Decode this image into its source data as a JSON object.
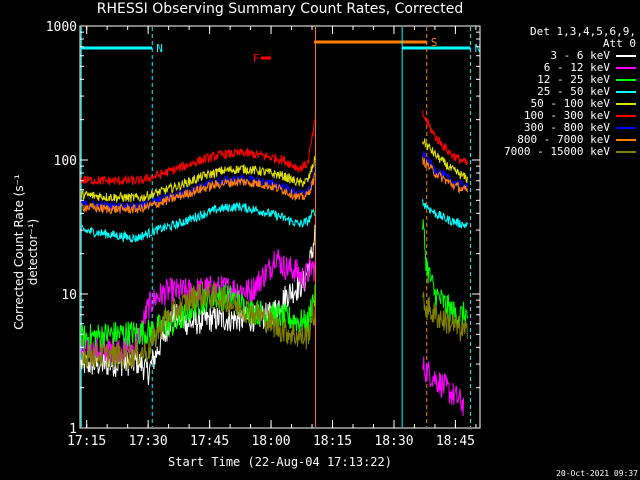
{
  "chart_data": {
    "type": "line",
    "title": "RHESSI Observing Summary Count Rates, Corrected",
    "xlabel": "Start Time (22-Aug-04 17:13:22)",
    "ylabel": "Corrected Count Rate (s⁻¹ detector⁻¹)",
    "x_ticks": [
      "17:15",
      "17:30",
      "17:45",
      "18:00",
      "18:15",
      "18:30",
      "18:45"
    ],
    "y_ticks": [
      "1",
      "10",
      "100",
      "1000"
    ],
    "ylim": [
      1,
      1000
    ],
    "y_scale": "log",
    "xlim": [
      "17:13:22",
      "18:51:00"
    ],
    "legend_header": [
      "Det 1,3,4,5,6,9,",
      "Att 0"
    ],
    "legend_position": "top-right",
    "flags": [
      {
        "label": "N",
        "color": "#00ffff",
        "start": "17:13:40",
        "end": "17:31:00"
      },
      {
        "label": "N",
        "color": "#00ffff",
        "start": "18:32:00",
        "end": "18:48:40"
      },
      {
        "label": "S",
        "color": "#ff8000",
        "start": "18:10:30",
        "end": "18:38:00"
      },
      {
        "label": "F",
        "color": "#ff0000",
        "start": "17:57:30",
        "end": "18:00:00"
      }
    ],
    "series": [
      {
        "name": "3 - 6 keV",
        "color": "#ffffff",
        "points": [
          [
            "17:13:40",
            3.0
          ],
          [
            "17:20",
            3.0
          ],
          [
            "17:28",
            3.1
          ],
          [
            "17:30",
            2.6
          ],
          [
            "17:32",
            3.6
          ],
          [
            "17:36",
            7.0
          ],
          [
            "17:40",
            6.0
          ],
          [
            "17:45",
            6.5
          ],
          [
            "17:50",
            6.5
          ],
          [
            "17:55",
            6.5
          ],
          [
            "18:00",
            7.0
          ],
          [
            "18:04",
            10.0
          ],
          [
            "18:08",
            12.0
          ],
          [
            "18:10",
            20.0
          ],
          [
            "18:10:50",
            30.0
          ]
        ]
      },
      {
        "name": "6 - 12 keV",
        "color": "#ff00ff",
        "points": [
          [
            "17:13:40",
            3.8
          ],
          [
            "17:20",
            3.8
          ],
          [
            "17:27",
            4.0
          ],
          [
            "17:30",
            8.0
          ],
          [
            "17:32",
            9.5
          ],
          [
            "17:35",
            10.5
          ],
          [
            "17:40",
            10.5
          ],
          [
            "17:45",
            11.0
          ],
          [
            "17:50",
            11.0
          ],
          [
            "17:55",
            10.5
          ],
          [
            "18:00",
            16.0
          ],
          [
            "18:01",
            20.0
          ],
          [
            "18:03",
            16.0
          ],
          [
            "18:06",
            15.0
          ],
          [
            "18:08",
            13.0
          ],
          [
            "18:10",
            16.0
          ],
          [
            "18:47",
            1.5
          ]
        ]
      },
      {
        "name": "12 - 25 keV",
        "color": "#00ff00",
        "points": [
          [
            "17:13:40",
            4.7
          ],
          [
            "17:20",
            5.0
          ],
          [
            "17:30",
            5.2
          ],
          [
            "17:33",
            5.7
          ],
          [
            "17:37",
            6.0
          ],
          [
            "17:41",
            8.0
          ],
          [
            "17:45",
            9.5
          ],
          [
            "17:50",
            9.5
          ],
          [
            "17:55",
            7.5
          ],
          [
            "18:00",
            7.0
          ],
          [
            "18:05",
            6.5
          ],
          [
            "18:09",
            6.0
          ],
          [
            "18:10",
            9.0
          ],
          [
            "18:37",
            35.0
          ],
          [
            "18:38",
            16.0
          ],
          [
            "18:40",
            10.0
          ],
          [
            "18:45",
            7.0
          ],
          [
            "18:48",
            7.0
          ]
        ]
      },
      {
        "name": "25 - 50 keV",
        "color": "#00ffff",
        "points": [
          [
            "17:13:40",
            30.0
          ],
          [
            "17:20",
            28.0
          ],
          [
            "17:27",
            26.0
          ],
          [
            "17:32",
            30.0
          ],
          [
            "17:37",
            33.0
          ],
          [
            "17:42",
            38.0
          ],
          [
            "17:47",
            43.0
          ],
          [
            "17:52",
            45.0
          ],
          [
            "17:57",
            42.0
          ],
          [
            "18:02",
            38.0
          ],
          [
            "18:07",
            33.0
          ],
          [
            "18:09",
            35.0
          ],
          [
            "18:10:40",
            42.0
          ],
          [
            "18:37",
            48.0
          ],
          [
            "18:40",
            40.0
          ],
          [
            "18:43",
            36.0
          ],
          [
            "18:47",
            33.0
          ],
          [
            "18:48",
            32.0
          ]
        ]
      },
      {
        "name": "50 - 100 keV",
        "color": "#e0e000",
        "points": [
          [
            "17:13:40",
            55.0
          ],
          [
            "17:20",
            53.0
          ],
          [
            "17:28",
            52.0
          ],
          [
            "17:33",
            58.0
          ],
          [
            "17:38",
            65.0
          ],
          [
            "17:43",
            75.0
          ],
          [
            "17:48",
            83.0
          ],
          [
            "17:53",
            86.0
          ],
          [
            "17:58",
            82.0
          ],
          [
            "18:03",
            76.0
          ],
          [
            "18:07",
            67.0
          ],
          [
            "18:09",
            70.0
          ],
          [
            "18:10:40",
            100.0
          ],
          [
            "18:37",
            140.0
          ],
          [
            "18:40",
            110.0
          ],
          [
            "18:44",
            85.0
          ],
          [
            "18:48",
            72.0
          ]
        ]
      },
      {
        "name": "100 - 300 keV",
        "color": "#ff0000",
        "points": [
          [
            "17:13:40",
            71.0
          ],
          [
            "17:20",
            70.0
          ],
          [
            "17:28",
            70.0
          ],
          [
            "17:33",
            78.0
          ],
          [
            "17:38",
            88.0
          ],
          [
            "17:43",
            100.0
          ],
          [
            "17:48",
            110.0
          ],
          [
            "17:53",
            113.0
          ],
          [
            "17:58",
            108.0
          ],
          [
            "18:03",
            100.0
          ],
          [
            "18:07",
            86.0
          ],
          [
            "18:09",
            95.0
          ],
          [
            "18:10:40",
            190.0
          ],
          [
            "18:37",
            220.0
          ],
          [
            "18:40",
            150.0
          ],
          [
            "18:44",
            110.0
          ],
          [
            "18:48",
            93.0
          ]
        ]
      },
      {
        "name": "300 - 800 keV",
        "color": "#0000ff",
        "points": [
          [
            "17:13:40",
            47.0
          ],
          [
            "17:20",
            45.0
          ],
          [
            "17:28",
            45.0
          ],
          [
            "17:33",
            50.0
          ],
          [
            "17:38",
            56.0
          ],
          [
            "17:43",
            64.0
          ],
          [
            "17:48",
            70.0
          ],
          [
            "17:53",
            72.0
          ],
          [
            "17:58",
            69.0
          ],
          [
            "18:03",
            63.0
          ],
          [
            "18:07",
            55.0
          ],
          [
            "18:09",
            58.0
          ],
          [
            "18:10:40",
            80.0
          ],
          [
            "18:37",
            110.0
          ],
          [
            "18:40",
            85.0
          ],
          [
            "18:44",
            70.0
          ],
          [
            "18:48",
            62.0
          ]
        ]
      },
      {
        "name": "800 - 7000 keV",
        "color": "#ff8000",
        "points": [
          [
            "17:13:40",
            45.0
          ],
          [
            "17:20",
            43.0
          ],
          [
            "17:28",
            43.0
          ],
          [
            "17:33",
            48.0
          ],
          [
            "17:38",
            54.0
          ],
          [
            "17:43",
            61.0
          ],
          [
            "17:48",
            67.0
          ],
          [
            "17:53",
            69.0
          ],
          [
            "17:58",
            66.0
          ],
          [
            "18:03",
            60.0
          ],
          [
            "18:07",
            52.0
          ],
          [
            "18:09",
            55.0
          ],
          [
            "18:10:40",
            75.0
          ],
          [
            "18:37",
            100.0
          ],
          [
            "18:40",
            80.0
          ],
          [
            "18:44",
            66.0
          ],
          [
            "18:48",
            58.0
          ]
        ]
      },
      {
        "name": "7000 - 15000 keV",
        "color": "#808000",
        "points": [
          [
            "17:13:40",
            3.5
          ],
          [
            "17:20",
            3.5
          ],
          [
            "17:25",
            3.4
          ],
          [
            "17:30",
            3.8
          ],
          [
            "17:34",
            6.5
          ],
          [
            "17:38",
            8.0
          ],
          [
            "17:42",
            10.0
          ],
          [
            "17:47",
            9.5
          ],
          [
            "17:52",
            8.0
          ],
          [
            "17:57",
            7.0
          ],
          [
            "18:02",
            5.5
          ],
          [
            "18:07",
            4.8
          ],
          [
            "18:09",
            4.8
          ],
          [
            "18:10",
            7.0
          ],
          [
            "18:37",
            8.5
          ],
          [
            "18:40",
            7.0
          ],
          [
            "18:44",
            6.0
          ],
          [
            "18:48",
            5.0
          ]
        ]
      }
    ]
  },
  "timestamp": "20-Oct-2021 09:37"
}
